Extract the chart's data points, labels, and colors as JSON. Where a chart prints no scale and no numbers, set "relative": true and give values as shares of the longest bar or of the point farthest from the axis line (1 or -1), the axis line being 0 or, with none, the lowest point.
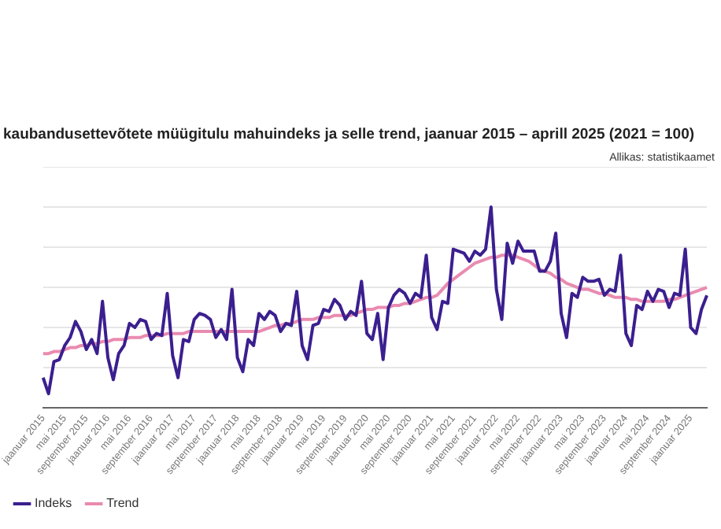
{
  "chart_data": {
    "type": "line",
    "title": "kaubandusettevõtete müügitulu mahuindeks ja selle trend, jaanuar 2015 – aprill 2025 (2021 = 100)",
    "annotations": [
      "Allikas: statistikaamet"
    ],
    "relative": true,
    "grid": "y",
    "legend": "bottom left",
    "marker": "none",
    "line_style": "solid",
    "categories": [
      "jaanuar 2015",
      null,
      null,
      null,
      "mai 2015",
      null,
      null,
      null,
      "september 2015",
      null,
      null,
      null,
      "jaanuar 2016",
      null,
      null,
      null,
      "mai 2016",
      null,
      null,
      null,
      "september 2016",
      null,
      null,
      null,
      "jaanuar 2017",
      null,
      null,
      null,
      "mai 2017",
      null,
      null,
      null,
      "september 2017",
      null,
      null,
      null,
      "jaanuar 2018",
      null,
      null,
      null,
      "mai 2018",
      null,
      null,
      null,
      "september 2018",
      null,
      null,
      null,
      "jaanuar 2019",
      null,
      null,
      null,
      "mai 2019",
      null,
      null,
      null,
      "september 2019",
      null,
      null,
      null,
      "jaanuar 2020",
      null,
      null,
      null,
      "mai 2020",
      null,
      null,
      null,
      "september 2020",
      null,
      null,
      null,
      "jaanuar 2021",
      null,
      null,
      null,
      "mai 2021",
      null,
      null,
      null,
      "september 2021",
      null,
      null,
      null,
      "jaanuar 2022",
      null,
      null,
      null,
      "mai 2022",
      null,
      null,
      null,
      "september 2022",
      null,
      null,
      null,
      "jaanuar 2023",
      null,
      null,
      null,
      "mai 2023",
      null,
      null,
      null,
      "september 2023",
      null,
      null,
      null,
      "jaanuar 2024",
      null,
      null,
      null,
      "mai 2024",
      null,
      null,
      null,
      "september 2024",
      null,
      null,
      null,
      "jaanuar 2025",
      null,
      null,
      null
    ],
    "series": [
      {
        "name": "Indeks",
        "color": "#3b1f8f",
        "values": [
          0.15,
          0.07,
          0.23,
          0.24,
          0.31,
          0.35,
          0.43,
          0.38,
          0.29,
          0.34,
          0.27,
          0.53,
          0.25,
          0.14,
          0.27,
          0.31,
          0.42,
          0.4,
          0.44,
          0.43,
          0.34,
          0.37,
          0.36,
          0.57,
          0.26,
          0.15,
          0.34,
          0.33,
          0.44,
          0.47,
          0.46,
          0.44,
          0.35,
          0.39,
          0.34,
          0.59,
          0.25,
          0.18,
          0.34,
          0.31,
          0.47,
          0.44,
          0.48,
          0.46,
          0.38,
          0.42,
          0.41,
          0.58,
          0.31,
          0.24,
          0.41,
          0.42,
          0.49,
          0.48,
          0.54,
          0.51,
          0.44,
          0.48,
          0.46,
          0.63,
          0.37,
          0.34,
          0.47,
          0.24,
          0.5,
          0.56,
          0.59,
          0.57,
          0.52,
          0.57,
          0.55,
          0.76,
          0.45,
          0.39,
          0.53,
          0.52,
          0.79,
          0.78,
          0.77,
          0.73,
          0.78,
          0.76,
          0.79,
          1,
          0.59,
          0.44,
          0.82,
          0.72,
          0.83,
          0.78,
          0.78,
          0.78,
          0.68,
          0.68,
          0.73,
          0.87,
          0.47,
          0.35,
          0.57,
          0.55,
          0.65,
          0.63,
          0.63,
          0.64,
          0.56,
          0.59,
          0.58,
          0.76,
          0.37,
          0.31,
          0.51,
          0.49,
          0.58,
          0.53,
          0.59,
          0.58,
          0.5,
          0.57,
          0.56,
          0.79,
          0.4,
          0.37,
          0.49,
          0.56
        ]
      },
      {
        "name": "Trend",
        "color": "#e98bb0",
        "values": [
          0.27,
          0.27,
          0.28,
          0.28,
          0.29,
          0.3,
          0.3,
          0.31,
          0.31,
          0.32,
          0.32,
          0.33,
          0.33,
          0.34,
          0.34,
          0.34,
          0.35,
          0.35,
          0.35,
          0.36,
          0.36,
          0.36,
          0.36,
          0.37,
          0.37,
          0.37,
          0.37,
          0.38,
          0.38,
          0.38,
          0.38,
          0.38,
          0.38,
          0.38,
          0.38,
          0.38,
          0.38,
          0.38,
          0.38,
          0.38,
          0.38,
          0.39,
          0.4,
          0.41,
          0.41,
          0.42,
          0.42,
          0.43,
          0.44,
          0.44,
          0.44,
          0.45,
          0.45,
          0.45,
          0.46,
          0.46,
          0.46,
          0.46,
          0.47,
          0.48,
          0.49,
          0.49,
          0.5,
          0.5,
          0.5,
          0.51,
          0.51,
          0.52,
          0.52,
          0.53,
          0.54,
          0.55,
          0.55,
          0.56,
          0.59,
          0.62,
          0.64,
          0.66,
          0.68,
          0.7,
          0.72,
          0.73,
          0.74,
          0.75,
          0.75,
          0.76,
          0.76,
          0.76,
          0.75,
          0.74,
          0.73,
          0.71,
          0.69,
          0.68,
          0.67,
          0.65,
          0.64,
          0.62,
          0.61,
          0.6,
          0.59,
          0.59,
          0.58,
          0.57,
          0.57,
          0.56,
          0.55,
          0.55,
          0.55,
          0.54,
          0.54,
          0.53,
          0.53,
          0.53,
          0.53,
          0.53,
          0.54,
          0.54,
          0.55,
          0.56,
          0.57,
          0.58,
          0.59,
          0.6
        ]
      }
    ]
  }
}
